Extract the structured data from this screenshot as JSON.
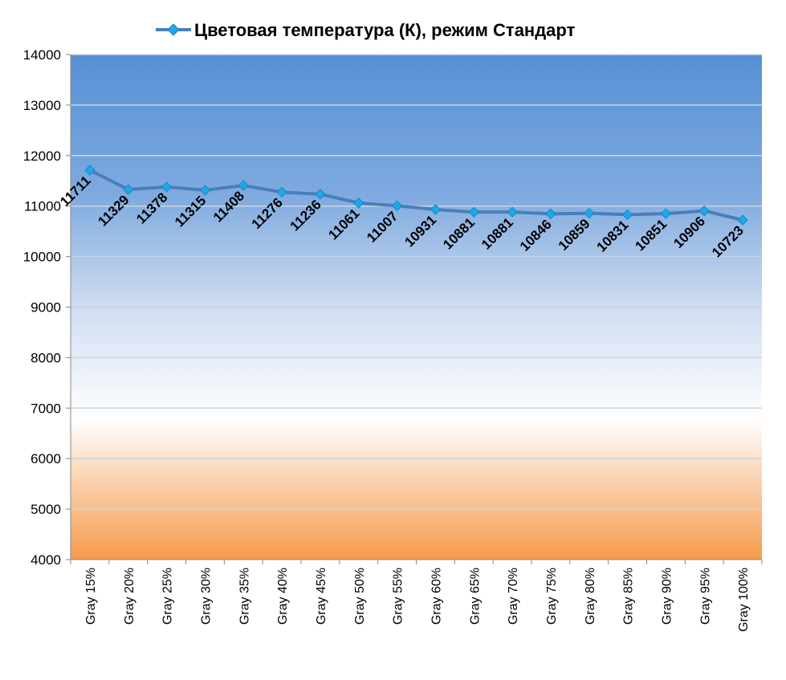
{
  "chart_data": {
    "type": "line",
    "title": "",
    "xlabel": "",
    "ylabel": "",
    "ylim": [
      4000,
      14000
    ],
    "y_ticks": [
      4000,
      5000,
      6000,
      7000,
      8000,
      9000,
      10000,
      11000,
      12000,
      13000,
      14000
    ],
    "categories": [
      "Gray 15%",
      "Gray 20%",
      "Gray 25%",
      "Gray 30%",
      "Gray 35%",
      "Gray 40%",
      "Gray 45%",
      "Gray 50%",
      "Gray 55%",
      "Gray 60%",
      "Gray 65%",
      "Gray 70%",
      "Gray 75%",
      "Gray 80%",
      "Gray 85%",
      "Gray 90%",
      "Gray 95%",
      "Gray 100%"
    ],
    "series": [
      {
        "name": "Цветовая температура (К), режим Стандарт",
        "color": "#4A7EBB",
        "marker_color": "#1FA8E8",
        "values": [
          11711,
          11329,
          11378,
          11315,
          11408,
          11276,
          11236,
          11061,
          11007,
          10931,
          10881,
          10881,
          10846,
          10859,
          10831,
          10851,
          10906,
          10723
        ]
      }
    ],
    "data_labels": true,
    "grid": true,
    "legend_position": "top"
  },
  "colors": {
    "plot_top": "#5590D5",
    "plot_mid": "#FFFFFF",
    "plot_bottom": "#F59A4A",
    "gridline": "#C8D4E4"
  }
}
